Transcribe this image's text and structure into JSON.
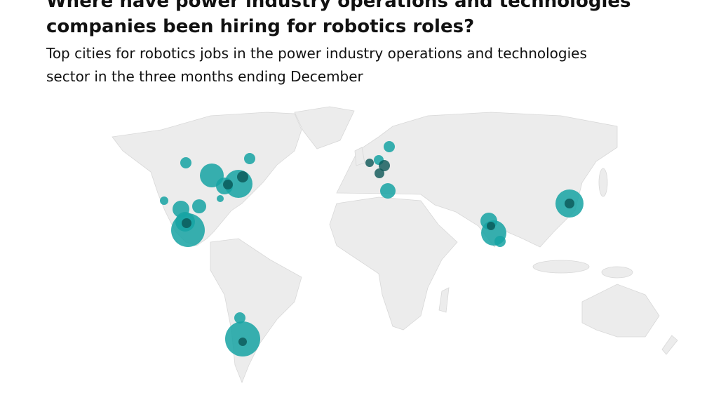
{
  "header": {
    "title": "Where have power industry operations and technologies companies been hiring for robotics roles?",
    "subtitle": "Top cities for robotics jobs in the power industry operations and technologies sector in the three months ending December"
  }
}
